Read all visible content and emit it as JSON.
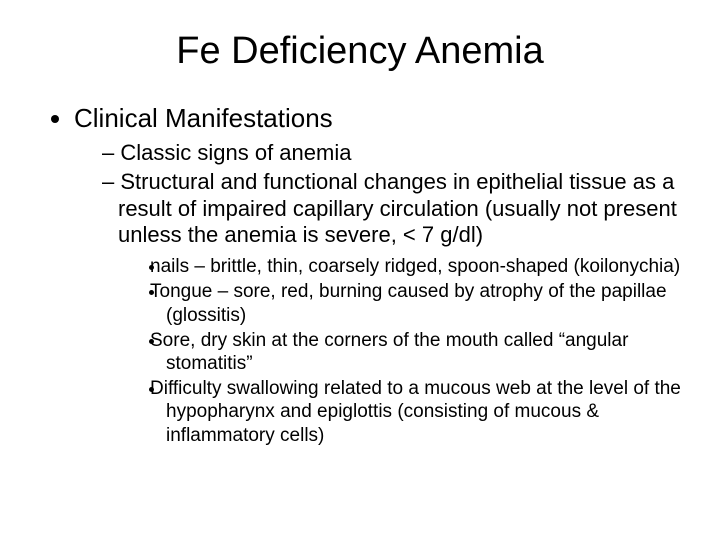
{
  "title": "Fe Deficiency Anemia",
  "level1": {
    "item1": "Clinical Manifestations"
  },
  "level2": {
    "item1": "Classic signs of anemia",
    "item2": "Structural and functional changes in epithelial tissue as a result of impaired capillary circulation (usually not present unless the anemia is severe, < 7 g/dl)"
  },
  "level3": {
    "item1": "nails – brittle, thin, coarsely ridged, spoon-shaped (koilonychia)",
    "item2": "Tongue – sore, red, burning caused by atrophy of the papillae (glossitis)",
    "item3": "Sore, dry skin at the corners of the mouth called “angular stomatitis”",
    "item4": "Difficulty swallowing related to a mucous web at the level of the hypopharynx and epiglottis (consisting of mucous & inflammatory cells)"
  },
  "colors": {
    "background": "#ffffff",
    "text": "#000000"
  },
  "fonts": {
    "family": "Arial",
    "title_size_pt": 38,
    "level1_size_pt": 26,
    "level2_size_pt": 22,
    "level3_size_pt": 19
  }
}
